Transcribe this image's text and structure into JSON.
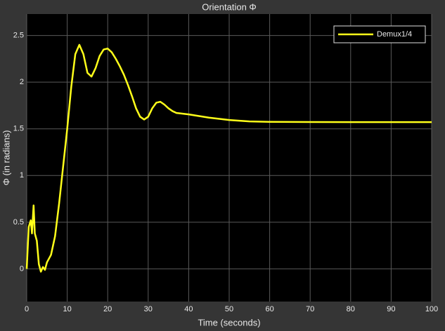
{
  "chart_data": {
    "type": "line",
    "title": "Orientation Φ",
    "xlabel": "Time (seconds)",
    "ylabel": "Φ (in radians)",
    "x": [
      0,
      0.5,
      1,
      1.3,
      1.7,
      2,
      2.5,
      3,
      3.5,
      4,
      4.5,
      5,
      6,
      7,
      8,
      9,
      10,
      11,
      12,
      13,
      14,
      15,
      16,
      17,
      18,
      19,
      20,
      21,
      22,
      23,
      24,
      25,
      26,
      27,
      28,
      29,
      30,
      31,
      32,
      33,
      34,
      35,
      36,
      37,
      38,
      40,
      45,
      50,
      55,
      60,
      70,
      80,
      100
    ],
    "series": [
      {
        "name": "Demux1/4",
        "color": "#ffff1a",
        "values": [
          0,
          0.45,
          0.52,
          0.38,
          0.68,
          0.38,
          0.3,
          0.05,
          -0.03,
          0.02,
          -0.01,
          0.07,
          0.15,
          0.35,
          0.7,
          1.1,
          1.5,
          1.95,
          2.3,
          2.4,
          2.3,
          2.1,
          2.06,
          2.15,
          2.28,
          2.35,
          2.36,
          2.32,
          2.25,
          2.17,
          2.08,
          1.97,
          1.85,
          1.72,
          1.63,
          1.6,
          1.63,
          1.72,
          1.78,
          1.79,
          1.76,
          1.72,
          1.69,
          1.67,
          1.665,
          1.655,
          1.62,
          1.595,
          1.58,
          1.575,
          1.573,
          1.572,
          1.572
        ]
      }
    ],
    "xlim": [
      0,
      100
    ],
    "ylim": [
      -0.35,
      2.73
    ],
    "xticks": [
      0,
      10,
      20,
      30,
      40,
      50,
      60,
      70,
      80,
      90,
      100
    ],
    "yticks": [
      0,
      0.5,
      1,
      1.5,
      2,
      2.5
    ],
    "grid": true,
    "legend": "upper right"
  }
}
